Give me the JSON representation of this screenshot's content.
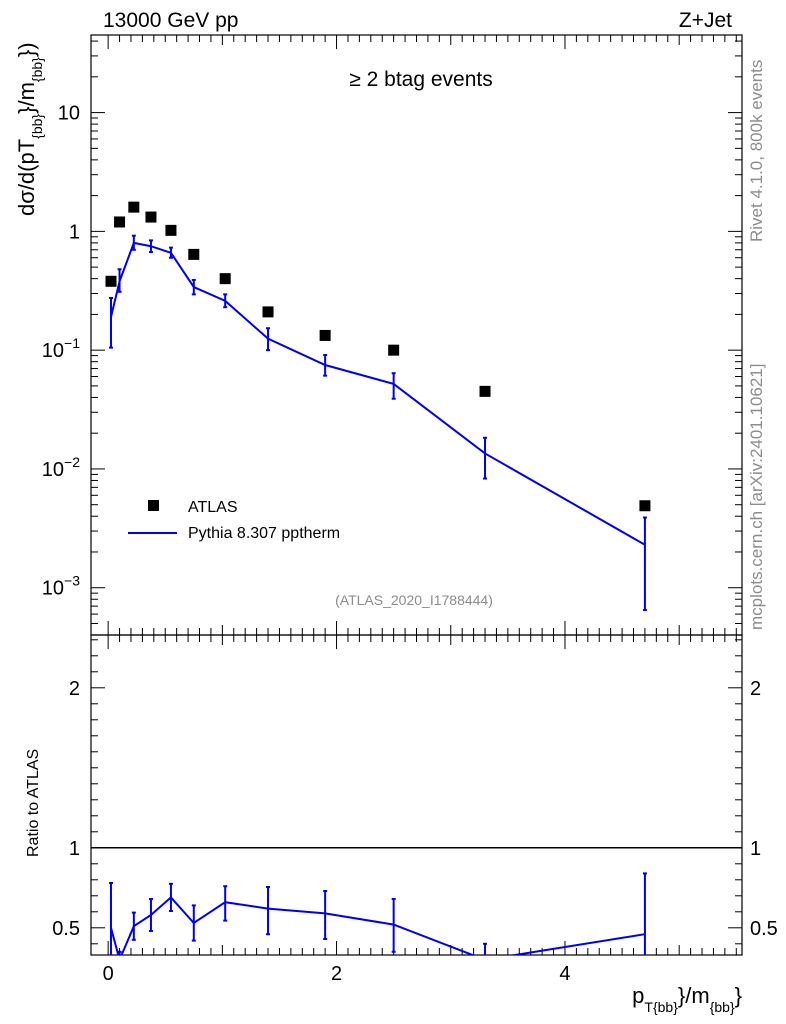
{
  "header": {
    "energy_label": "13000 GeV pp",
    "process_label": "Z+Jet"
  },
  "side_labels": {
    "rivet": "Rivet 4.1.0,  800k events",
    "source": "mcplots.cern.ch [arXiv:2401.10621]"
  },
  "chart_data": [
    {
      "type": "scatter+line",
      "title": "≥ 2 btag events",
      "watermark": "(ATLAS_2020_I1788444)",
      "ylabel": "dσ/d(pT_{bb}/m_{bb})",
      "yscale": "log",
      "ylim": [
        0.0004,
        45
      ],
      "xlim": [
        -0.15,
        5.55
      ],
      "y_ticks": [
        {
          "value": 0.001,
          "base": "10",
          "exp": "−3"
        },
        {
          "value": 0.01,
          "base": "10",
          "exp": "−2"
        },
        {
          "value": 0.1,
          "base": "10",
          "exp": "−1"
        },
        {
          "value": 1,
          "base": "1",
          "exp": ""
        },
        {
          "value": 10,
          "base": "10",
          "exp": ""
        }
      ],
      "legend": [
        {
          "label": "ATLAS",
          "marker": "square",
          "color": "#000000"
        },
        {
          "label": "Pythia 8.307 pptherm",
          "marker": "line",
          "color": "#0000ee"
        }
      ],
      "series": [
        {
          "name": "ATLAS",
          "x": [
            0.025,
            0.1,
            0.225,
            0.375,
            0.55,
            0.75,
            1.025,
            1.4,
            1.9,
            2.5,
            3.3,
            4.7
          ],
          "values": [
            0.38,
            1.2,
            1.6,
            1.32,
            1.02,
            0.64,
            0.4,
            0.21,
            0.133,
            0.1,
            0.045,
            0.0049
          ]
        },
        {
          "name": "Pythia 8.307 pptherm",
          "x": [
            0.025,
            0.1,
            0.225,
            0.375,
            0.55,
            0.75,
            1.025,
            1.4,
            1.9,
            2.5,
            3.3,
            4.7
          ],
          "values": [
            0.19,
            0.38,
            0.8,
            0.75,
            0.66,
            0.34,
            0.26,
            0.125,
            0.075,
            0.052,
            0.0135,
            0.0023
          ],
          "err_low": [
            0.085,
            0.07,
            0.1,
            0.08,
            0.06,
            0.045,
            0.03,
            0.025,
            0.014,
            0.013,
            0.0052,
            0.00165
          ],
          "err_high": [
            0.085,
            0.1,
            0.12,
            0.09,
            0.07,
            0.05,
            0.035,
            0.028,
            0.016,
            0.012,
            0.0048,
            0.0016
          ]
        }
      ]
    },
    {
      "type": "line",
      "ylabel": "Ratio to ATLAS",
      "xlabel": "p_{T{bb}}/m_{bb}",
      "ylim": [
        0.33,
        2.33
      ],
      "xlim": [
        -0.15,
        5.55
      ],
      "y_ticks": [
        0.5,
        1,
        2
      ],
      "y_tick_labels": [
        "0.5",
        "1",
        "2"
      ],
      "x_ticks": [
        0,
        2,
        4
      ],
      "x_tick_labels": [
        "0",
        "2",
        "4"
      ],
      "reference_line": 1,
      "series": [
        {
          "name": "Pythia 8.307 pptherm",
          "x": [
            0.025,
            0.1,
            0.225,
            0.375,
            0.55,
            0.75,
            1.025,
            1.4,
            1.9,
            2.5,
            3.3,
            4.7
          ],
          "values": [
            0.5,
            0.3,
            0.51,
            0.58,
            0.69,
            0.53,
            0.66,
            0.62,
            0.59,
            0.52,
            0.3,
            0.46
          ],
          "err_low": [
            0.28,
            0.05,
            0.085,
            0.1,
            0.085,
            0.11,
            0.115,
            0.16,
            0.16,
            0.17,
            0.1,
            0.38
          ],
          "err_high": [
            0.28,
            0.05,
            0.085,
            0.1,
            0.085,
            0.11,
            0.1,
            0.135,
            0.14,
            0.16,
            0.1,
            0.38
          ]
        }
      ]
    }
  ]
}
